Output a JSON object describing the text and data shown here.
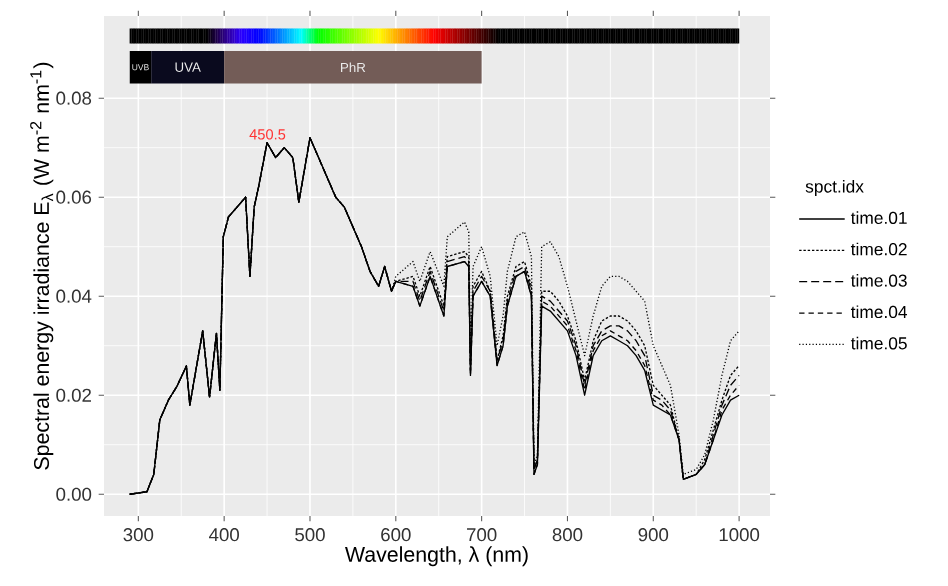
{
  "chart_data": {
    "type": "line",
    "xlabel": "Wavelength, λ (nm)",
    "ylabel": "Spectral energy irradiance E$_{λ}$ (W m$^{-2}$ nm$^{-1}$)",
    "legend_title": "spct.idx",
    "legend": "right",
    "grid": true,
    "xlim": [
      260,
      1036
    ],
    "ylim": [
      -0.0044,
      0.0966
    ],
    "xticks": [
      300,
      400,
      500,
      600,
      700,
      800,
      900,
      1000
    ],
    "yticks": [
      {
        "value": 0,
        "label": "0.00"
      },
      {
        "value": 0.02,
        "label": "0.02"
      },
      {
        "value": 0.04,
        "label": "0.04"
      },
      {
        "value": 0.06,
        "label": "0.06"
      },
      {
        "value": 0.08,
        "label": "0.08"
      }
    ],
    "bands": [
      {
        "axis": "x",
        "from": 290,
        "to": 315,
        "label": "UVB",
        "color": "#000000"
      },
      {
        "axis": "x",
        "from": 315,
        "to": 400,
        "label": "UVA",
        "color": "#0a0a1e"
      },
      {
        "axis": "x",
        "from": 400,
        "to": 700,
        "label": "PhR",
        "color": "#735c57"
      }
    ],
    "annotations": [
      {
        "text": "450.5",
        "x": 450.5,
        "y": 0.071
      }
    ],
    "x": [
      290,
      310,
      318,
      325,
      335,
      345,
      356,
      360,
      375,
      383,
      391,
      395,
      399,
      405,
      415,
      425,
      430,
      435,
      440,
      450,
      460,
      470,
      480,
      487,
      500,
      510,
      520,
      530,
      540,
      550,
      560,
      570,
      580,
      587,
      595,
      600,
      620,
      628,
      640,
      656,
      660,
      680,
      685,
      687,
      690,
      700,
      710,
      718,
      725,
      730,
      740,
      750,
      758,
      761,
      765,
      770,
      780,
      790,
      800,
      810,
      820,
      830,
      840,
      850,
      860,
      870,
      880,
      890,
      900,
      910,
      920,
      930,
      935,
      950,
      960,
      970,
      980,
      990,
      1000
    ],
    "series": [
      {
        "name": "time.01",
        "color": "#000000",
        "line_style": "solid",
        "values": [
          0,
          0.0005,
          0.004,
          0.015,
          0.019,
          0.0218,
          0.0259,
          0.018,
          0.033,
          0.0196,
          0.0325,
          0.021,
          0.052,
          0.056,
          0.058,
          0.06,
          0.044,
          0.058,
          0.062,
          0.071,
          0.068,
          0.07,
          0.068,
          0.059,
          0.072,
          0.068,
          0.064,
          0.06,
          0.058,
          0.054,
          0.05,
          0.045,
          0.042,
          0.046,
          0.041,
          0.043,
          0.042,
          0.038,
          0.044,
          0.036,
          0.046,
          0.047,
          0.046,
          0.024,
          0.04,
          0.043,
          0.04,
          0.026,
          0.03,
          0.038,
          0.044,
          0.045,
          0.04,
          0.004,
          0.006,
          0.038,
          0.037,
          0.035,
          0.033,
          0.028,
          0.02,
          0.028,
          0.031,
          0.032,
          0.031,
          0.03,
          0.028,
          0.025,
          0.018,
          0.017,
          0.016,
          0.011,
          0.003,
          0.004,
          0.006,
          0.011,
          0.016,
          0.019,
          0.02
        ]
      },
      {
        "name": "time.02",
        "color": "#000000",
        "line_style": "dotted",
        "values": [
          0,
          0.0005,
          0.004,
          0.015,
          0.019,
          0.0218,
          0.0259,
          0.018,
          0.033,
          0.0196,
          0.0325,
          0.021,
          0.052,
          0.056,
          0.058,
          0.06,
          0.044,
          0.058,
          0.062,
          0.071,
          0.068,
          0.07,
          0.068,
          0.059,
          0.072,
          0.068,
          0.064,
          0.06,
          0.058,
          0.054,
          0.05,
          0.045,
          0.042,
          0.046,
          0.041,
          0.043,
          0.044,
          0.04,
          0.046,
          0.038,
          0.048,
          0.049,
          0.048,
          0.025,
          0.042,
          0.045,
          0.041,
          0.027,
          0.032,
          0.04,
          0.046,
          0.047,
          0.042,
          0.005,
          0.007,
          0.041,
          0.041,
          0.039,
          0.036,
          0.031,
          0.023,
          0.031,
          0.035,
          0.036,
          0.036,
          0.035,
          0.033,
          0.03,
          0.022,
          0.02,
          0.018,
          0.011,
          0.003,
          0.004,
          0.007,
          0.013,
          0.019,
          0.024,
          0.026
        ]
      },
      {
        "name": "time.03",
        "color": "#000000",
        "line_style": "dashed",
        "values": [
          0,
          0.0005,
          0.004,
          0.015,
          0.019,
          0.0218,
          0.0259,
          0.018,
          0.033,
          0.0196,
          0.0325,
          0.021,
          0.052,
          0.056,
          0.058,
          0.06,
          0.044,
          0.058,
          0.062,
          0.071,
          0.068,
          0.07,
          0.068,
          0.059,
          0.072,
          0.068,
          0.064,
          0.06,
          0.058,
          0.054,
          0.05,
          0.045,
          0.042,
          0.046,
          0.041,
          0.043,
          0.043,
          0.039,
          0.045,
          0.037,
          0.047,
          0.048,
          0.047,
          0.025,
          0.041,
          0.044,
          0.041,
          0.027,
          0.031,
          0.039,
          0.045,
          0.046,
          0.041,
          0.005,
          0.007,
          0.04,
          0.039,
          0.037,
          0.035,
          0.03,
          0.022,
          0.03,
          0.033,
          0.034,
          0.034,
          0.033,
          0.031,
          0.028,
          0.02,
          0.019,
          0.017,
          0.011,
          0.003,
          0.004,
          0.006,
          0.012,
          0.018,
          0.022,
          0.024
        ]
      },
      {
        "name": "time.04",
        "color": "#000000",
        "line_style": "dashed",
        "values": [
          0,
          0.0005,
          0.004,
          0.015,
          0.019,
          0.0218,
          0.0259,
          0.018,
          0.033,
          0.0196,
          0.0325,
          0.021,
          0.052,
          0.056,
          0.058,
          0.06,
          0.044,
          0.058,
          0.062,
          0.071,
          0.068,
          0.07,
          0.068,
          0.059,
          0.072,
          0.068,
          0.064,
          0.06,
          0.058,
          0.054,
          0.05,
          0.045,
          0.042,
          0.046,
          0.041,
          0.043,
          0.042,
          0.038,
          0.044,
          0.036,
          0.046,
          0.047,
          0.046,
          0.024,
          0.04,
          0.043,
          0.04,
          0.026,
          0.03,
          0.038,
          0.044,
          0.045,
          0.04,
          0.004,
          0.006,
          0.039,
          0.038,
          0.036,
          0.034,
          0.029,
          0.021,
          0.029,
          0.032,
          0.033,
          0.032,
          0.031,
          0.029,
          0.026,
          0.019,
          0.018,
          0.016,
          0.011,
          0.003,
          0.004,
          0.006,
          0.011,
          0.017,
          0.02,
          0.022
        ]
      },
      {
        "name": "time.05",
        "color": "#000000",
        "line_style": "dotted",
        "values": [
          0,
          0.0005,
          0.004,
          0.015,
          0.019,
          0.0218,
          0.0259,
          0.018,
          0.033,
          0.0196,
          0.0325,
          0.021,
          0.052,
          0.056,
          0.058,
          0.06,
          0.044,
          0.058,
          0.062,
          0.071,
          0.068,
          0.07,
          0.068,
          0.059,
          0.072,
          0.068,
          0.064,
          0.06,
          0.058,
          0.054,
          0.05,
          0.045,
          0.042,
          0.046,
          0.041,
          0.044,
          0.047,
          0.043,
          0.049,
          0.042,
          0.052,
          0.055,
          0.053,
          0.028,
          0.046,
          0.05,
          0.044,
          0.03,
          0.036,
          0.045,
          0.052,
          0.053,
          0.048,
          0.006,
          0.008,
          0.05,
          0.051,
          0.048,
          0.042,
          0.035,
          0.028,
          0.036,
          0.042,
          0.044,
          0.044,
          0.043,
          0.041,
          0.039,
          0.03,
          0.026,
          0.022,
          0.012,
          0.004,
          0.005,
          0.008,
          0.015,
          0.024,
          0.031,
          0.033
        ]
      }
    ]
  }
}
